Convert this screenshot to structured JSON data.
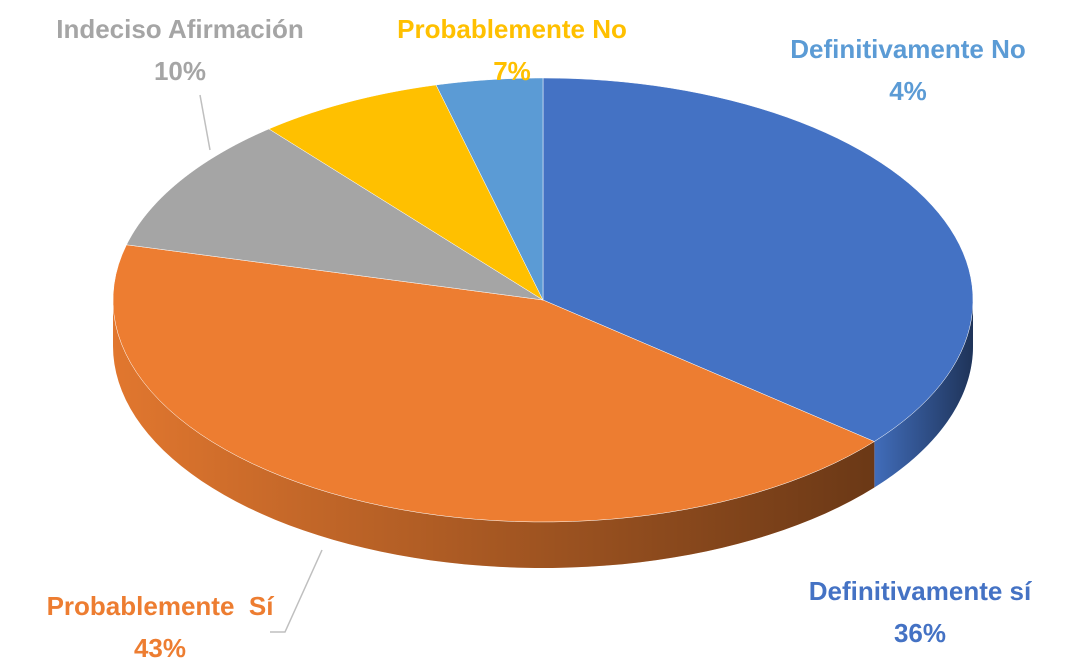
{
  "chart_data": {
    "type": "pie",
    "categories": [
      "Definitivamente sí",
      "Probablemente  Sí",
      "Indeciso Afirmación",
      "Probablemente No",
      "Definitivamente No"
    ],
    "values": [
      36,
      43,
      10,
      7,
      4
    ],
    "value_labels": [
      "36%",
      "43%",
      "10%",
      "7%",
      "4%"
    ],
    "colors": [
      "#4472c4",
      "#ed7d31",
      "#a5a5a5",
      "#ffc000",
      "#5b9bd5"
    ]
  }
}
